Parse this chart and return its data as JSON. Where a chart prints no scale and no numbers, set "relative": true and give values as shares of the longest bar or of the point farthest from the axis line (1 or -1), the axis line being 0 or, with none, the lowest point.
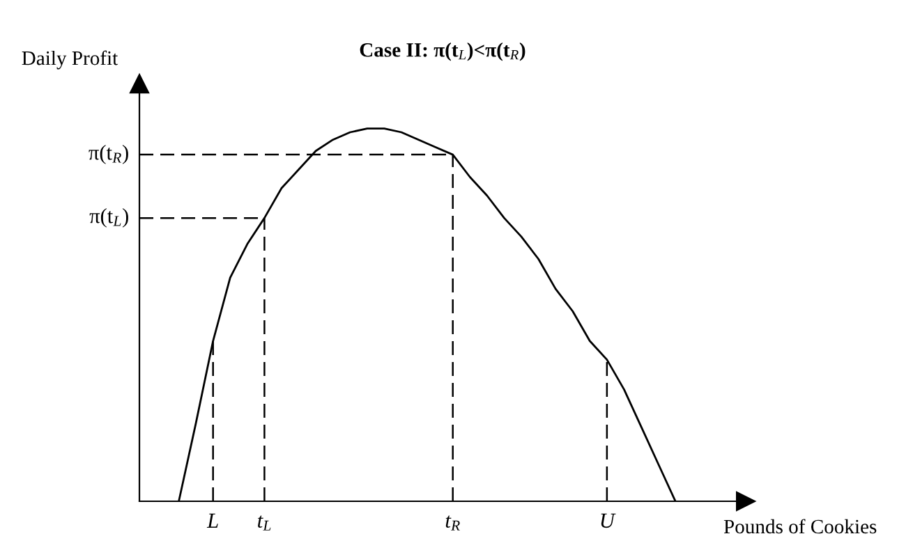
{
  "chart_data": {
    "type": "line",
    "title": "Case II: π(t$_{L}$)<π(t$_{R}$)",
    "xlabel": "Pounds of Cookies",
    "ylabel": "Daily Profit",
    "relative": true,
    "categories": [
      null,
      null,
      "L",
      null,
      null,
      "t$_{L}$",
      null,
      null,
      null,
      null,
      null,
      null,
      null,
      null,
      null,
      null,
      "t$_{R}$",
      null,
      null,
      null,
      null,
      null,
      null,
      null,
      null,
      "U",
      null,
      null,
      null,
      null
    ],
    "grid": false,
    "legend": false,
    "marker": "none",
    "line_style": "solid",
    "series": [
      {
        "color": "#000000",
        "values": [
          0,
          0.21,
          0.43,
          0.6,
          0.69,
          0.76,
          0.84,
          0.89,
          0.94,
          0.97,
          0.99,
          1,
          1,
          0.99,
          0.97,
          0.95,
          0.93,
          0.87,
          0.82,
          0.76,
          0.71,
          0.65,
          0.57,
          0.51,
          0.43,
          0.38,
          0.3,
          0.2,
          0.1,
          0
        ]
      }
    ],
    "ref_lines": [
      {
        "axis": "x",
        "value": "L",
        "line_style": "dashed",
        "color": "#000000"
      },
      {
        "axis": "x",
        "value": "t$_{L}$",
        "line_style": "dashed",
        "color": "#000000"
      },
      {
        "axis": "x",
        "value": "t$_{R}$",
        "line_style": "dashed",
        "color": "#000000"
      },
      {
        "axis": "x",
        "value": "U",
        "line_style": "dashed",
        "color": "#000000"
      },
      {
        "axis": "y",
        "value": 0.76,
        "label": "π(t$_{L}$)",
        "line_style": "dashed",
        "color": "#000000"
      },
      {
        "axis": "y",
        "value": 0.93,
        "label": "π(t$_{R}$)",
        "line_style": "dashed",
        "color": "#000000"
      }
    ]
  }
}
